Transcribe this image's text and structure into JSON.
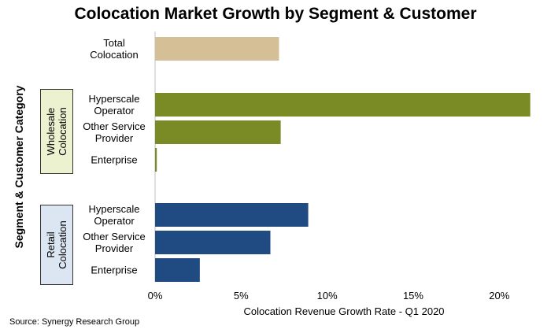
{
  "chart_data": {
    "type": "bar",
    "orientation": "horizontal",
    "title": "Colocation Market Growth by Segment & Customer",
    "xlabel": "Colocation Revenue Growth Rate - Q1 2020",
    "ylabel": "Segment & Customer Category",
    "xlim": [
      0,
      22
    ],
    "x_ticks": [
      "0%",
      "5%",
      "10%",
      "15%",
      "20%"
    ],
    "x_tick_values": [
      0,
      5,
      10,
      15,
      20
    ],
    "grid": false,
    "groups": [
      {
        "name": "",
        "categories": [
          {
            "label_lines": [
              "Total",
              "Colocation"
            ],
            "value": 7.2,
            "color": "#d4bf97"
          }
        ]
      },
      {
        "name": "Wholesale Colocation",
        "name_lines": [
          "Wholesale",
          "Colocation"
        ],
        "categories": [
          {
            "label_lines": [
              "Hyperscale",
              "Operator"
            ],
            "value": 21.8,
            "color": "#7a8a24"
          },
          {
            "label_lines": [
              "Other Service",
              "Provider"
            ],
            "value": 7.3,
            "color": "#7a8a24"
          },
          {
            "label_lines": [
              "Enterprise"
            ],
            "value": 0.1,
            "color": "#7a8a24"
          }
        ]
      },
      {
        "name": "Retail Colocation",
        "name_lines": [
          "Retail",
          "Colocation"
        ],
        "categories": [
          {
            "label_lines": [
              "Hyperscale",
              "Operator"
            ],
            "value": 8.9,
            "color": "#1f4a82"
          },
          {
            "label_lines": [
              "Other Service",
              "Provider"
            ],
            "value": 6.7,
            "color": "#1f4a82"
          },
          {
            "label_lines": [
              "Enterprise"
            ],
            "value": 2.6,
            "color": "#1f4a82"
          }
        ]
      }
    ]
  },
  "source": "Source: Synergy Research Group"
}
